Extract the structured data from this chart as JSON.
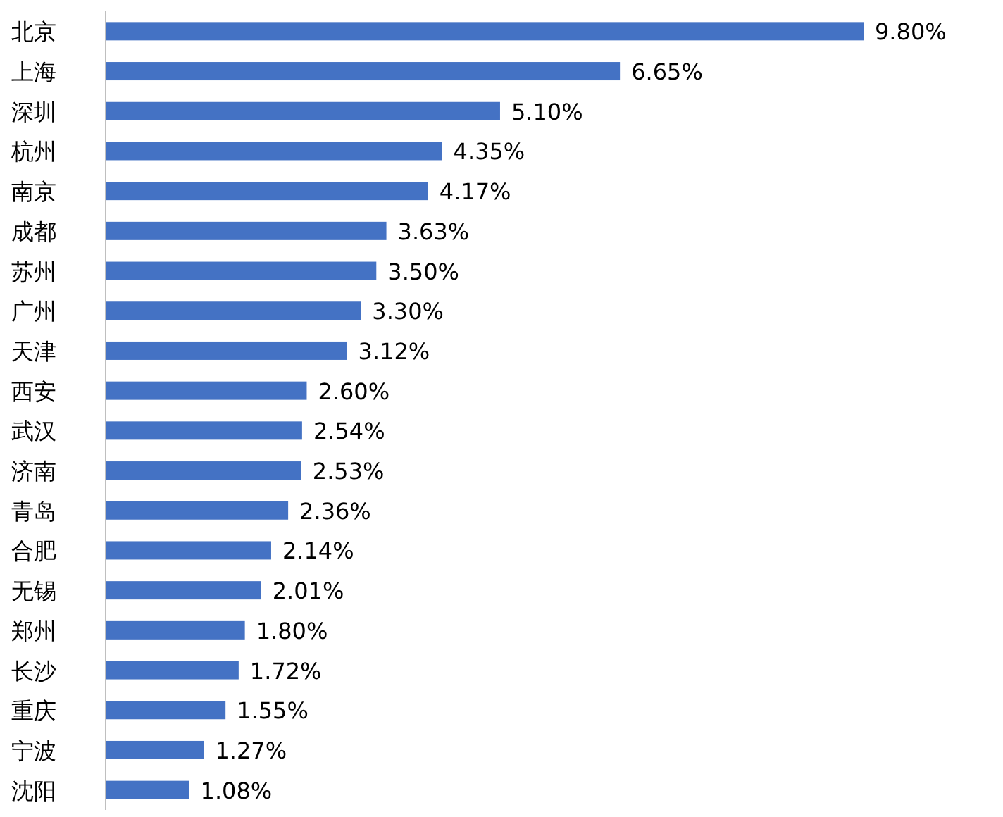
{
  "chart_data": {
    "type": "bar",
    "orientation": "horizontal",
    "color": "#4472c4",
    "categories": [
      "北京",
      "上海",
      "深圳",
      "杭州",
      "南京",
      "成都",
      "苏州",
      "广州",
      "天津",
      "西安",
      "武汉",
      "济南",
      "青岛",
      "合肥",
      "无锡",
      "郑州",
      "长沙",
      "重庆",
      "宁波",
      "沈阳"
    ],
    "values": [
      9.8,
      6.65,
      5.1,
      4.35,
      4.17,
      3.63,
      3.5,
      3.3,
      3.12,
      2.6,
      2.54,
      2.53,
      2.36,
      2.14,
      2.01,
      1.8,
      1.72,
      1.55,
      1.27,
      1.08
    ],
    "value_labels": [
      "9.80%",
      "6.65%",
      "5.10%",
      "4.35%",
      "4.17%",
      "3.63%",
      "3.50%",
      "3.30%",
      "3.12%",
      "2.60%",
      "2.54%",
      "2.53%",
      "2.36%",
      "2.14%",
      "2.01%",
      "1.80%",
      "1.72%",
      "1.55%",
      "1.27%",
      "1.08%"
    ]
  }
}
